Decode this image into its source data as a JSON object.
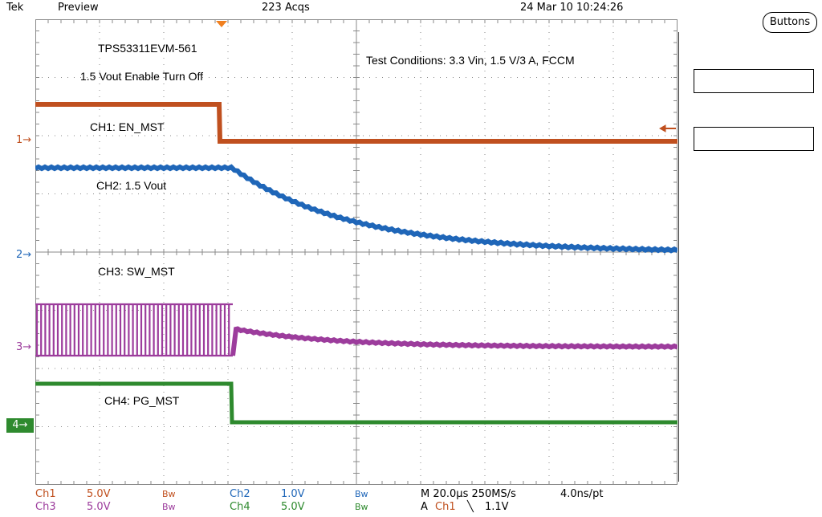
{
  "header": {
    "brand": "Tek",
    "mode": "Preview",
    "acqs": "223 Acqs",
    "datetime": "24 Mar 10 10:24:26"
  },
  "side_panel": {
    "buttons_label": "Buttons"
  },
  "annotations": {
    "board": "TPS53311EVM-561",
    "test_title": "1.5 Vout Enable Turn Off",
    "test_conditions": "Test Conditions: 3.3 Vin, 1.5 V/3 A, FCCM",
    "ch1_label": "CH1: EN_MST",
    "ch2_label": "CH2: 1.5 Vout",
    "ch3_label": "CH3: SW_MST",
    "ch4_label": "CH4: PG_MST"
  },
  "markers": {
    "m1": "1→",
    "m2": "2→",
    "m3": "3→",
    "m4": "4→"
  },
  "footer": {
    "ch1": "Ch1",
    "ch1_scale": "5.0V",
    "bw1": "Bw",
    "ch2": "Ch2",
    "ch2_scale": "1.0V",
    "bw2": "Bw",
    "ch3": "Ch3",
    "ch3_scale": "5.0V",
    "bw3": "Bw",
    "ch4": "Ch4",
    "ch4_scale": "5.0V",
    "bw4": "Bw",
    "timebase": "M 20.0µs 250MS/s",
    "resolution": "4.0ns/pt",
    "trig_prefix": "A",
    "trig_src": "Ch1",
    "trig_slope": "╲",
    "trig_level": "1.1V"
  },
  "colors": {
    "ch1": "#c0501f",
    "ch2": "#1f66b8",
    "ch3": "#9c3c9c",
    "ch4": "#2e8a2e",
    "grid": "#8a8a8a",
    "trigger_marker": "#f08020"
  }
}
